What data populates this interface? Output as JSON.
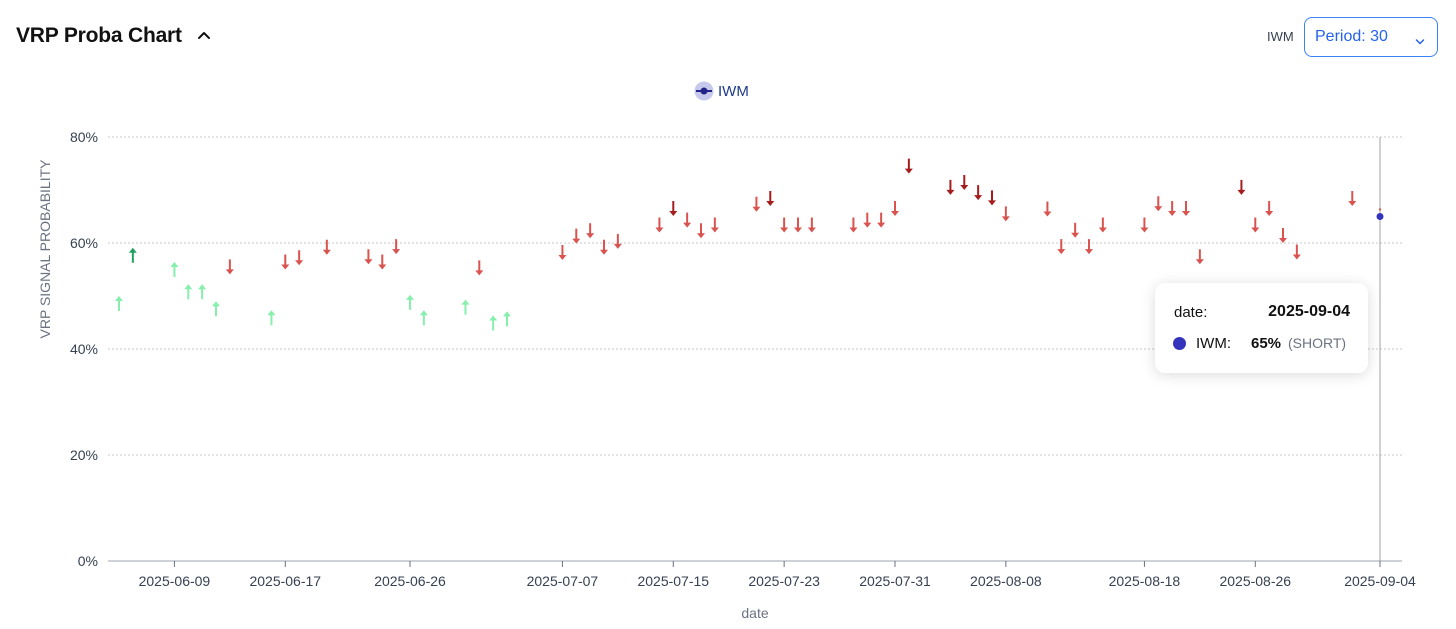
{
  "header": {
    "title": "VRP Proba Chart",
    "ticker": "IWM",
    "period_label": "Period: 30"
  },
  "legend": {
    "label": "IWM"
  },
  "colors": {
    "long": "#86efac",
    "long_strong": "#22a060",
    "short": "#d9534f",
    "short_strong": "#a51d1d",
    "series_dot": "#3333bb",
    "accent": "#3b82f6"
  },
  "tooltip": {
    "date_label": "date:",
    "date_value": "2025-09-04",
    "series_label": "IWM:",
    "value_text": "65%",
    "signal_text": "(SHORT)"
  },
  "chart_data": {
    "type": "scatter",
    "title": "",
    "xlabel": "date",
    "ylabel": "VRP SIGNAL PROBABILITY",
    "ylim": [
      0,
      80
    ],
    "y_ticks": [
      "0%",
      "20%",
      "40%",
      "60%",
      "80%"
    ],
    "x_ticks": [
      "2025-06-09",
      "2025-06-17",
      "2025-06-26",
      "2025-07-07",
      "2025-07-15",
      "2025-07-23",
      "2025-07-31",
      "2025-08-08",
      "2025-08-18",
      "2025-08-26",
      "2025-09-04"
    ],
    "grid": true,
    "legend_position": "top-center",
    "series": [
      {
        "name": "IWM",
        "points": [
          {
            "x": "2025-06-05",
            "y": 48.5,
            "signal": "long"
          },
          {
            "x": "2025-06-06",
            "y": 57.6,
            "signal": "long",
            "strong": true
          },
          {
            "x": "2025-06-09",
            "y": 54.9,
            "signal": "long"
          },
          {
            "x": "2025-06-10",
            "y": 50.7,
            "signal": "long"
          },
          {
            "x": "2025-06-11",
            "y": 50.7,
            "signal": "long"
          },
          {
            "x": "2025-06-12",
            "y": 47.5,
            "signal": "long"
          },
          {
            "x": "2025-06-13",
            "y": 55.6,
            "signal": "short"
          },
          {
            "x": "2025-06-16",
            "y": 45.8,
            "signal": "long"
          },
          {
            "x": "2025-06-17",
            "y": 56.5,
            "signal": "short"
          },
          {
            "x": "2025-06-18",
            "y": 57.3,
            "signal": "short"
          },
          {
            "x": "2025-06-20",
            "y": 59.3,
            "signal": "short"
          },
          {
            "x": "2025-06-23",
            "y": 57.5,
            "signal": "short"
          },
          {
            "x": "2025-06-24",
            "y": 56.5,
            "signal": "short"
          },
          {
            "x": "2025-06-25",
            "y": 59.4,
            "signal": "short"
          },
          {
            "x": "2025-06-26",
            "y": 48.7,
            "signal": "long"
          },
          {
            "x": "2025-06-27",
            "y": 45.8,
            "signal": "long"
          },
          {
            "x": "2025-06-30",
            "y": 47.8,
            "signal": "long"
          },
          {
            "x": "2025-07-01",
            "y": 55.4,
            "signal": "short"
          },
          {
            "x": "2025-07-02",
            "y": 44.8,
            "signal": "long"
          },
          {
            "x": "2025-07-03",
            "y": 45.6,
            "signal": "long"
          },
          {
            "x": "2025-07-07",
            "y": 58.3,
            "signal": "short"
          },
          {
            "x": "2025-07-08",
            "y": 61.4,
            "signal": "short"
          },
          {
            "x": "2025-07-09",
            "y": 62.4,
            "signal": "short"
          },
          {
            "x": "2025-07-10",
            "y": 59.3,
            "signal": "short"
          },
          {
            "x": "2025-07-11",
            "y": 60.4,
            "signal": "short"
          },
          {
            "x": "2025-07-14",
            "y": 63.5,
            "signal": "short"
          },
          {
            "x": "2025-07-15",
            "y": 66.6,
            "signal": "short",
            "strong": true
          },
          {
            "x": "2025-07-16",
            "y": 64.4,
            "signal": "short"
          },
          {
            "x": "2025-07-17",
            "y": 62.4,
            "signal": "short"
          },
          {
            "x": "2025-07-18",
            "y": 63.5,
            "signal": "short"
          },
          {
            "x": "2025-07-21",
            "y": 67.4,
            "signal": "short"
          },
          {
            "x": "2025-07-22",
            "y": 68.5,
            "signal": "short",
            "strong": true
          },
          {
            "x": "2025-07-23",
            "y": 63.5,
            "signal": "short"
          },
          {
            "x": "2025-07-24",
            "y": 63.5,
            "signal": "short"
          },
          {
            "x": "2025-07-25",
            "y": 63.5,
            "signal": "short"
          },
          {
            "x": "2025-07-28",
            "y": 63.5,
            "signal": "short"
          },
          {
            "x": "2025-07-29",
            "y": 64.4,
            "signal": "short"
          },
          {
            "x": "2025-07-30",
            "y": 64.4,
            "signal": "short"
          },
          {
            "x": "2025-07-31",
            "y": 66.6,
            "signal": "short"
          },
          {
            "x": "2025-08-01",
            "y": 74.6,
            "signal": "short",
            "strong": true
          },
          {
            "x": "2025-08-04",
            "y": 70.6,
            "signal": "short",
            "strong": true
          },
          {
            "x": "2025-08-05",
            "y": 71.5,
            "signal": "short",
            "strong": true
          },
          {
            "x": "2025-08-06",
            "y": 69.6,
            "signal": "short",
            "strong": true
          },
          {
            "x": "2025-08-07",
            "y": 68.6,
            "signal": "short",
            "strong": true
          },
          {
            "x": "2025-08-08",
            "y": 65.6,
            "signal": "short"
          },
          {
            "x": "2025-08-11",
            "y": 66.5,
            "signal": "short"
          },
          {
            "x": "2025-08-12",
            "y": 59.4,
            "signal": "short"
          },
          {
            "x": "2025-08-13",
            "y": 62.5,
            "signal": "short"
          },
          {
            "x": "2025-08-14",
            "y": 59.4,
            "signal": "short"
          },
          {
            "x": "2025-08-15",
            "y": 63.5,
            "signal": "short"
          },
          {
            "x": "2025-08-18",
            "y": 63.5,
            "signal": "short"
          },
          {
            "x": "2025-08-19",
            "y": 67.5,
            "signal": "short"
          },
          {
            "x": "2025-08-20",
            "y": 66.6,
            "signal": "short"
          },
          {
            "x": "2025-08-21",
            "y": 66.6,
            "signal": "short"
          },
          {
            "x": "2025-08-22",
            "y": 57.5,
            "signal": "short"
          },
          {
            "x": "2025-08-25",
            "y": 70.6,
            "signal": "short",
            "strong": true
          },
          {
            "x": "2025-08-26",
            "y": 63.5,
            "signal": "short"
          },
          {
            "x": "2025-08-27",
            "y": 66.6,
            "signal": "short"
          },
          {
            "x": "2025-08-28",
            "y": 61.5,
            "signal": "short"
          },
          {
            "x": "2025-08-29",
            "y": 58.4,
            "signal": "short"
          },
          {
            "x": "2025-09-02",
            "y": 68.5,
            "signal": "short"
          },
          {
            "x": "2025-09-04",
            "y": 65,
            "signal": "short",
            "active": true
          }
        ]
      }
    ]
  }
}
